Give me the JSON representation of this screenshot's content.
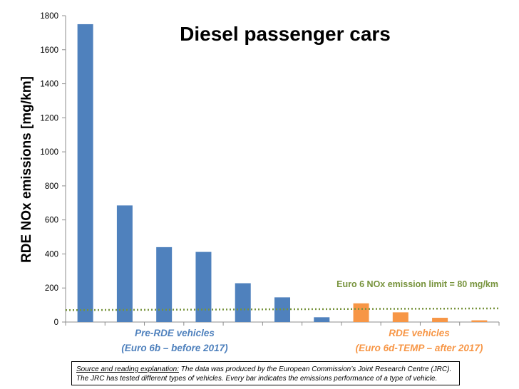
{
  "chart_data": {
    "type": "bar",
    "title": "Diesel passenger cars",
    "ylabel": "RDE NOx emissions [mg/km]",
    "xlabel": "",
    "ylim": [
      0,
      1800
    ],
    "yticks": [
      0,
      200,
      400,
      600,
      800,
      1000,
      1200,
      1400,
      1600,
      1800
    ],
    "grid": false,
    "series": [
      {
        "group": "pre-rde",
        "color": "#4f81bd",
        "values": [
          1750,
          685,
          440,
          412,
          228,
          145,
          28
        ]
      },
      {
        "group": "rde",
        "color": "#f79646",
        "values": [
          110,
          57,
          25,
          10
        ]
      }
    ],
    "groups": [
      {
        "label_line1": "Pre-RDE  vehicles",
        "label_line2": "(Euro 6b – before 2017)",
        "color": "#4f81bd"
      },
      {
        "label_line1": "RDE vehicles",
        "label_line2": "(Euro 6d-TEMP – after 2017)",
        "color": "#f79646"
      }
    ],
    "reference_line": {
      "label": "Euro 6 NOx emission limit = 80 mg/km",
      "value_start": 70,
      "value_end": 80,
      "color": "#77933c"
    }
  },
  "note": {
    "label": "Source and reading explanation:",
    "text_line1": " The data was produced by the European Commission’s Joint Research Centre (JRC).",
    "text_line2": "The JRC has tested different types of vehicles. Every bar indicates the emissions performance of a type of vehicle."
  }
}
